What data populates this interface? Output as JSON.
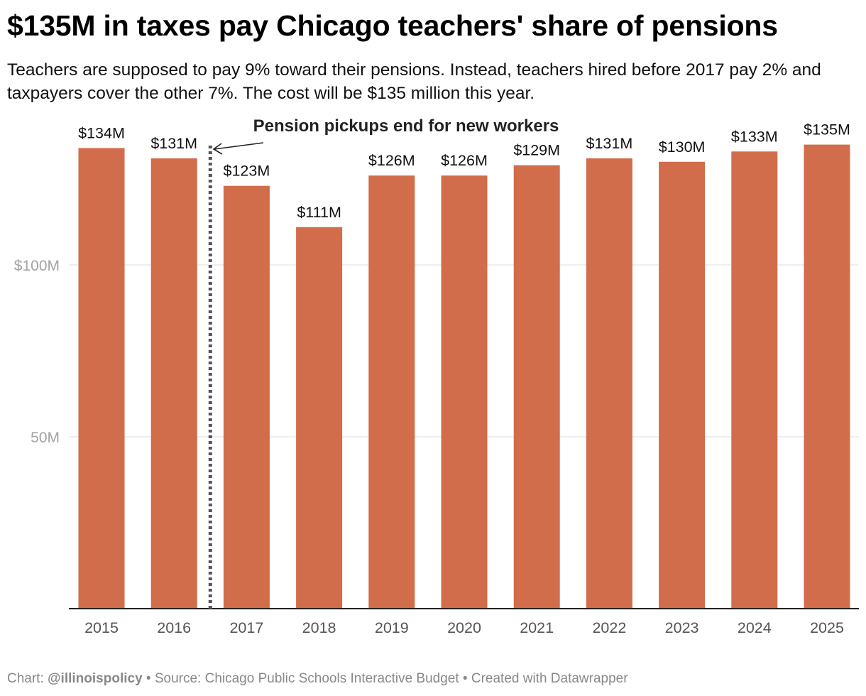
{
  "header": {
    "title": "$135M in taxes pay Chicago teachers' share of pensions",
    "subtitle": "Teachers are supposed to pay 9% toward their pensions. Instead, teachers hired before 2017 pay 2% and taxpayers cover the other 7%. The cost will be $135 million this year."
  },
  "chart_data": {
    "type": "bar",
    "categories": [
      "2015",
      "2016",
      "2017",
      "2018",
      "2019",
      "2020",
      "2021",
      "2022",
      "2023",
      "2024",
      "2025"
    ],
    "values": [
      134,
      131,
      123,
      111,
      126,
      126,
      129,
      131,
      130,
      133,
      135
    ],
    "data_labels": [
      "$134M",
      "$131M",
      "$123M",
      "$111M",
      "$126M",
      "$126M",
      "$129M",
      "$131M",
      "$130M",
      "$133M",
      "$135M"
    ],
    "units": "millions of dollars",
    "ylim": [
      0,
      143
    ],
    "yticks": [
      50,
      100
    ],
    "ytick_labels": [
      "50M",
      "$100M"
    ],
    "grid": true,
    "bar_color": "#D16D4A",
    "annotation": {
      "text": "Pension pickups end for new workers",
      "between": [
        "2016",
        "2017"
      ],
      "line_style": "dotted"
    }
  },
  "footer": {
    "prefix": "Chart: ",
    "handle": "@illinoispolicy",
    "rest": " • Source: Chicago Public Schools Interactive Budget • Created with Datawrapper"
  }
}
